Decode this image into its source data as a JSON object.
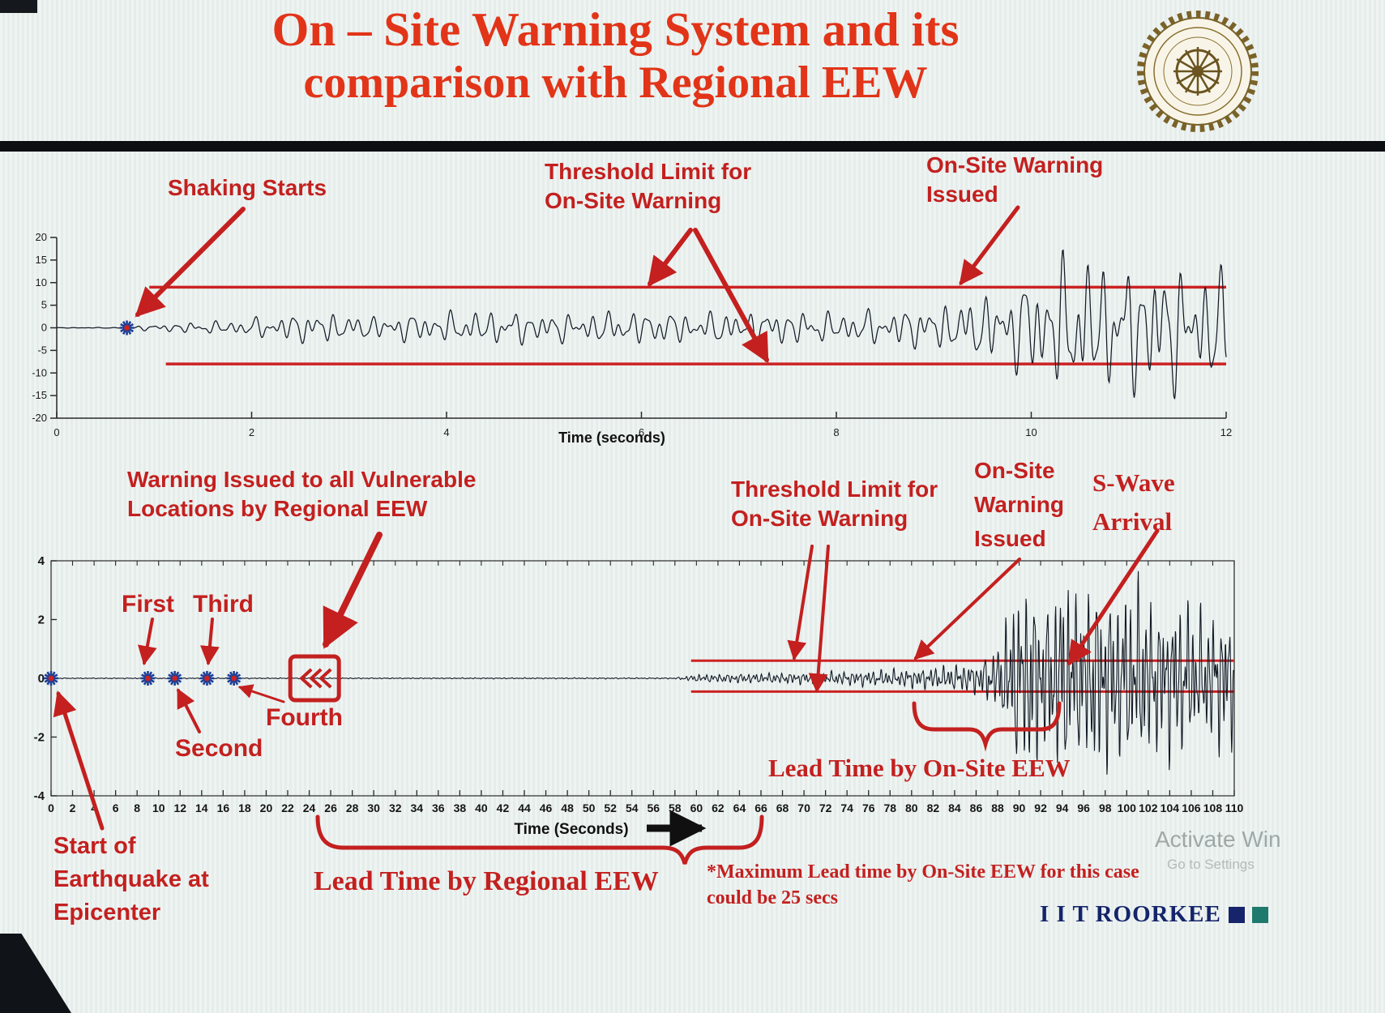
{
  "header": {
    "title_line1": "On – Site Warning System and its",
    "title_line2": "comparison with Regional EEW",
    "logo_alt": "IIT Roorkee emblem"
  },
  "top_chart": {
    "annotations": {
      "shaking_starts": "Shaking Starts",
      "threshold_limit": "Threshold Limit for\nOn-Site Warning",
      "warning_issued": "On-Site Warning\nIssued"
    }
  },
  "bottom_chart": {
    "annotations": {
      "regional_warning": "Warning Issued to all Vulnerable\nLocations by Regional EEW",
      "p_first": "First",
      "p_third": "Third",
      "p_second": "Second",
      "p_fourth": "Fourth",
      "threshold_limit": "Threshold Limit for\nOn-Site Warning",
      "warning_issued": "On-Site\nWarning\nIssued",
      "s_wave_arrival": "S-Wave\nArrival",
      "lead_time_onsite": "Lead Time by On-Site EEW",
      "lead_time_regional": "Lead Time by Regional EEW",
      "start_epicenter": "Start of\nEarthquake at\nEpicenter",
      "max_lead_note": "*Maximum Lead time by On-Site EEW for this case\ncould be 25 secs"
    }
  },
  "footer": {
    "brand": "I I T ROORKEE",
    "watermark_line1": "Activate Win",
    "watermark_line2": "Go to Settings"
  },
  "colors": {
    "title_red": "#e23418",
    "annotation_red": "#c3201f",
    "threshold_red": "#cc2222",
    "trace": "#131a26",
    "axis": "#2a2a2a",
    "star_blue": "#1d3f96",
    "star_center_red": "#cc2222",
    "brand_navy": "#15246b",
    "brand_teal": "#1f7a6e"
  },
  "chart_data": [
    {
      "type": "line",
      "title": "",
      "xlabel": "Time (seconds)",
      "ylabel": "",
      "xlim": [
        0,
        12
      ],
      "ylim": [
        -20,
        20
      ],
      "x_ticks": [
        0,
        2,
        4,
        6,
        8,
        10,
        12
      ],
      "y_ticks": [
        20,
        15,
        10,
        5,
        0,
        -5,
        -10,
        -15,
        -20
      ],
      "grid": false,
      "legend": null,
      "series_name": "on-site ground motion record",
      "threshold_upper": 9,
      "threshold_upper_start_x": 0.95,
      "threshold_lower": -8,
      "threshold_lower_start_x": 1.12,
      "shaking_start_marker": {
        "x": 0.72,
        "y": 0
      },
      "onsite_warning_cross_x": 9.3,
      "envelope": [
        [
          0,
          0.06
        ],
        [
          0.68,
          0.09
        ],
        [
          0.9,
          0.55
        ],
        [
          1.3,
          1.1
        ],
        [
          1.8,
          1.5
        ],
        [
          2.3,
          2.7
        ],
        [
          2.7,
          3.5
        ],
        [
          3.1,
          2.4
        ],
        [
          3.8,
          3.1
        ],
        [
          4.5,
          3.6
        ],
        [
          5.2,
          3.0
        ],
        [
          6.0,
          3.6
        ],
        [
          6.6,
          3.1
        ],
        [
          7.2,
          3.8
        ],
        [
          8.0,
          3.2
        ],
        [
          8.6,
          3.9
        ],
        [
          9.0,
          4.6
        ],
        [
          9.4,
          6.2
        ],
        [
          9.8,
          8.5
        ],
        [
          10.2,
          13.5
        ],
        [
          10.5,
          15.5
        ],
        [
          10.9,
          12.5
        ],
        [
          11.3,
          15.0
        ],
        [
          11.7,
          11.0
        ],
        [
          12,
          13.0
        ]
      ]
    },
    {
      "type": "line",
      "title": "",
      "xlabel": "Time (Seconds)",
      "ylabel": "",
      "xlim": [
        0,
        110
      ],
      "ylim": [
        -4,
        4
      ],
      "x_ticks": [
        0,
        2,
        4,
        6,
        8,
        10,
        12,
        14,
        16,
        18,
        20,
        22,
        24,
        26,
        28,
        30,
        32,
        34,
        36,
        38,
        40,
        42,
        44,
        46,
        48,
        50,
        52,
        54,
        56,
        58,
        60,
        62,
        64,
        66,
        68,
        70,
        72,
        74,
        76,
        78,
        80,
        82,
        84,
        86,
        88,
        90,
        92,
        94,
        96,
        98,
        100,
        102,
        104,
        106,
        108,
        110
      ],
      "y_ticks": [
        4,
        2,
        0,
        -2,
        -4
      ],
      "grid": false,
      "legend": null,
      "series_name": "regional vs on-site warning timeline record",
      "threshold_upper": 0.6,
      "threshold_lower": -0.45,
      "threshold_start_x": 59.5,
      "origin_marker_x": 0,
      "p_wave_markers_x": [
        9,
        11.5,
        14.5,
        17
      ],
      "regional_warning_icon_x": 24.5,
      "s_wave_arrival_x": 88,
      "envelope": [
        [
          0,
          0.015
        ],
        [
          58,
          0.02
        ],
        [
          60,
          0.12
        ],
        [
          64,
          0.15
        ],
        [
          68,
          0.17
        ],
        [
          72,
          0.2
        ],
        [
          76,
          0.24
        ],
        [
          80,
          0.3
        ],
        [
          83,
          0.38
        ],
        [
          86,
          0.5
        ],
        [
          88,
          1.0
        ],
        [
          89.5,
          2.7
        ],
        [
          91,
          3.2
        ],
        [
          92.5,
          2.3
        ],
        [
          94,
          3.4
        ],
        [
          95.5,
          2.6
        ],
        [
          97,
          3.1
        ],
        [
          99,
          2.7
        ],
        [
          101,
          3.0
        ],
        [
          103,
          2.3
        ],
        [
          105,
          2.6
        ],
        [
          107,
          2.0
        ],
        [
          109,
          2.3
        ],
        [
          110,
          1.9
        ]
      ]
    }
  ]
}
